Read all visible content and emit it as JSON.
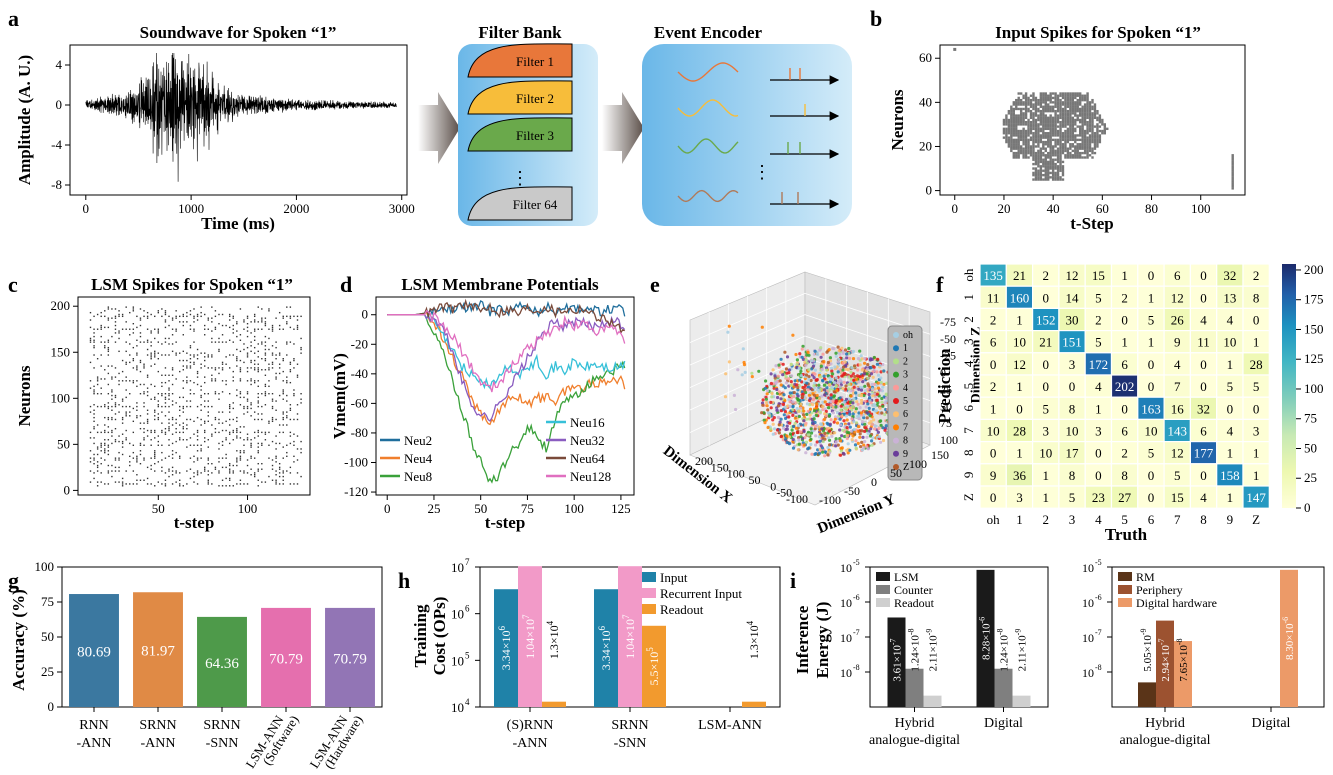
{
  "panels": {
    "a": {
      "letter": "a",
      "soundwave": {
        "title": "Soundwave for Spoken “1”",
        "xlabel": "Time (ms)",
        "ylabel": "Amplitude (A. U.)",
        "xticks": [
          0,
          1000,
          2000,
          3000
        ],
        "yticks": [
          4,
          0,
          -4,
          -8
        ],
        "xlim": [
          -150,
          3050
        ],
        "ylim": [
          -9,
          6
        ]
      },
      "filter_bank": {
        "title": "Filter Bank",
        "filters": [
          "Filter 1",
          "Filter 2",
          "Filter 3",
          "Filter 64"
        ],
        "colors": [
          "#e8773a",
          "#f7bd3a",
          "#6aa94b",
          "#c9c9c9"
        ],
        "ellipsis": "⋮"
      },
      "event_encoder": {
        "title": "Event Encoder",
        "ellipsis": "⋮",
        "wave_colors": [
          "#e8773a",
          "#f7bd3a",
          "#6aa94b",
          "#b07a5a"
        ]
      }
    },
    "b": {
      "letter": "b",
      "title": "Input Spikes for Spoken “1”",
      "xlabel": "t-Step",
      "ylabel": "Neurons",
      "xticks": [
        0,
        20,
        40,
        60,
        80,
        100
      ],
      "yticks": [
        0,
        20,
        40,
        60
      ],
      "xlim": [
        -6,
        118
      ],
      "ylim": [
        -2,
        66
      ]
    },
    "c": {
      "letter": "c",
      "title": "LSM Spikes for Spoken “1”",
      "xlabel": "t-step",
      "ylabel": "Neurons",
      "xticks": [
        50,
        100
      ],
      "yticks": [
        0,
        50,
        100,
        150,
        200
      ],
      "xlim": [
        5,
        135
      ],
      "ylim": [
        -5,
        210
      ]
    },
    "d": {
      "letter": "d",
      "title": "LSM Membrane Potentials",
      "xlabel": "t-step",
      "ylabel": "Vmem(mV)",
      "xticks": [
        0,
        25,
        50,
        75,
        100,
        125
      ],
      "yticks": [
        0,
        -20,
        -40,
        -60,
        -80,
        -100,
        -120
      ],
      "xlim": [
        -6,
        132
      ],
      "ylim": [
        -122,
        12
      ],
      "series": [
        {
          "name": "Neu2",
          "color": "#1f6e9c"
        },
        {
          "name": "Neu4",
          "color": "#f07f2d"
        },
        {
          "name": "Neu8",
          "color": "#3aa13a"
        },
        {
          "name": "Neu16",
          "color": "#36c0d8"
        },
        {
          "name": "Neu32",
          "color": "#8a5cc0"
        },
        {
          "name": "Neu64",
          "color": "#7a4a3a"
        },
        {
          "name": "Neu128",
          "color": "#e06fc0"
        }
      ]
    },
    "e": {
      "letter": "e",
      "xlabel": "Dimension X",
      "ylabel": "Dimension Y",
      "zlabel": "Dimension Z",
      "xticks": [
        -100,
        -50,
        0,
        50,
        100,
        150,
        200
      ],
      "yticks": [
        -100,
        -50,
        0,
        50,
        100,
        150
      ],
      "zticks": [
        -75,
        -50,
        -25,
        0,
        25,
        50,
        75,
        100
      ],
      "legend": [
        {
          "label": "oh",
          "color": "#a6cee3"
        },
        {
          "label": "1",
          "color": "#1f78b4"
        },
        {
          "label": "2",
          "color": "#b2df8a"
        },
        {
          "label": "3",
          "color": "#33a02c"
        },
        {
          "label": "4",
          "color": "#fb9a99"
        },
        {
          "label": "5",
          "color": "#e31a1c"
        },
        {
          "label": "6",
          "color": "#fdbf6f"
        },
        {
          "label": "7",
          "color": "#ff7f00"
        },
        {
          "label": "8",
          "color": "#cab2d6"
        },
        {
          "label": "9",
          "color": "#6a3d9a"
        },
        {
          "label": "Z",
          "color": "#b15928"
        }
      ]
    },
    "f": {
      "letter": "f",
      "xlabel": "Truth",
      "ylabel": "Prediction",
      "labels": [
        "oh",
        "1",
        "2",
        "3",
        "4",
        "5",
        "6",
        "7",
        "8",
        "9",
        "Z"
      ],
      "colorbar_ticks": [
        0,
        25,
        50,
        75,
        100,
        125,
        150,
        175,
        200
      ],
      "matrix": [
        [
          135,
          21,
          2,
          12,
          15,
          1,
          0,
          6,
          0,
          32,
          2
        ],
        [
          11,
          160,
          0,
          14,
          5,
          2,
          1,
          12,
          0,
          13,
          8
        ],
        [
          2,
          1,
          152,
          30,
          2,
          0,
          5,
          26,
          4,
          4,
          0
        ],
        [
          6,
          10,
          21,
          151,
          5,
          1,
          1,
          9,
          11,
          10,
          1
        ],
        [
          0,
          12,
          0,
          3,
          172,
          6,
          0,
          4,
          0,
          1,
          28
        ],
        [
          2,
          1,
          0,
          0,
          4,
          202,
          0,
          7,
          0,
          5,
          5
        ],
        [
          1,
          0,
          5,
          8,
          1,
          0,
          163,
          16,
          32,
          0,
          0
        ],
        [
          10,
          28,
          3,
          10,
          3,
          6,
          10,
          143,
          6,
          4,
          3
        ],
        [
          0,
          1,
          10,
          17,
          0,
          2,
          5,
          12,
          177,
          1,
          1
        ],
        [
          9,
          36,
          1,
          8,
          0,
          8,
          0,
          5,
          0,
          158,
          1
        ],
        [
          0,
          3,
          1,
          5,
          23,
          27,
          0,
          15,
          4,
          1,
          147
        ]
      ]
    },
    "g": {
      "letter": "g",
      "ylabel": "Accuracy (%)",
      "yticks": [
        0,
        25,
        50,
        75,
        100
      ],
      "ylim": [
        0,
        100
      ],
      "categories": [
        [
          "RNN",
          "-ANN"
        ],
        [
          "SRNN",
          "-ANN"
        ],
        [
          "SRNN",
          "-SNN"
        ],
        [
          "LSM-ANN",
          "(Software)"
        ],
        [
          "LSM-ANN",
          "(Hardware)"
        ]
      ],
      "values": [
        80.69,
        81.97,
        64.36,
        70.79,
        70.79
      ],
      "value_labels": [
        "80.69",
        "81.97",
        "64.36",
        "70.79",
        "70.79"
      ],
      "colors": [
        "#3b78a0",
        "#e08a45",
        "#4e9a4a",
        "#e56fae",
        "#9275b5"
      ]
    },
    "h": {
      "letter": "h",
      "ylabel": [
        "Training",
        "Cost (OPs)"
      ],
      "log_range": [
        4,
        7
      ],
      "tick_labels": [
        "10",
        "10",
        "10",
        "10"
      ],
      "tick_exps": [
        "4",
        "5",
        "6",
        "7"
      ],
      "legend": [
        "Input",
        "Recurrent Input",
        "Readout"
      ],
      "colors": [
        "#1f82a8",
        "#f29ac8",
        "#f29a2e"
      ],
      "categories": [
        [
          "(S)RNN",
          "-ANN"
        ],
        [
          "SRNN",
          "-SNN"
        ],
        [
          "LSM-ANN",
          ""
        ]
      ],
      "values": [
        [
          3340000,
          10400000,
          13000
        ],
        [
          3340000,
          10400000,
          550000
        ],
        [
          0,
          0,
          13000
        ]
      ],
      "value_labels": [
        [
          {
            "m": "3.34×10",
            "e": "6"
          },
          {
            "m": "1.04×10",
            "e": "7"
          },
          {
            "m": "1.3×10",
            "e": "4"
          }
        ],
        [
          {
            "m": "3.34×10",
            "e": "6"
          },
          {
            "m": "1.04×10",
            "e": "7"
          },
          {
            "m": "5.5×10",
            "e": "5"
          }
        ],
        [
          null,
          null,
          {
            "m": "1.3×10",
            "e": "4"
          }
        ]
      ]
    },
    "i": {
      "letter": "i",
      "ylabel": [
        "Inference",
        "Energy (J)"
      ],
      "log_range": [
        -9,
        -5
      ],
      "tick_labels": [
        "10",
        "10",
        "10",
        "10"
      ],
      "tick_exps": [
        "-8",
        "-7",
        "-6",
        "-5"
      ],
      "left": {
        "legend": [
          "LSM",
          "Counter",
          "Readout"
        ],
        "colors": [
          "#1a1a1a",
          "#7f7f7f",
          "#cfcfcf"
        ],
        "categories": [
          [
            "Hybrid",
            "analogue-digital"
          ],
          [
            "Digital",
            ""
          ]
        ],
        "values": [
          [
            3.61e-07,
            1.24e-08,
            2.11e-09
          ],
          [
            8.28e-06,
            1.24e-08,
            2.11e-09
          ]
        ],
        "value_labels": [
          [
            {
              "m": "3.61×10",
              "e": "-7"
            },
            {
              "m": "1.24×10",
              "e": "-8"
            },
            {
              "m": "2.11×10",
              "e": "-9"
            }
          ],
          [
            {
              "m": "8.28×10",
              "e": "-6"
            },
            {
              "m": "1.24×10",
              "e": "-8"
            },
            {
              "m": "2.11×10",
              "e": "-9"
            }
          ]
        ]
      },
      "right": {
        "legend": [
          "RM",
          "Periphery",
          "Digital hardware"
        ],
        "colors": [
          "#5a3418",
          "#9c5230",
          "#ec9a68"
        ],
        "categories": [
          [
            "Hybrid",
            "analogue-digital"
          ],
          [
            "Digital",
            ""
          ]
        ],
        "values": [
          [
            5.05e-09,
            2.94e-07,
            7.65e-08
          ],
          [
            0,
            0,
            8.3e-06
          ]
        ],
        "value_labels": [
          [
            {
              "m": "5.05×10",
              "e": "-9"
            },
            {
              "m": "2.94×10",
              "e": "-7"
            },
            {
              "m": "7.65×10",
              "e": "-8"
            }
          ],
          [
            null,
            null,
            {
              "m": "8.30×10",
              "e": "-6"
            }
          ]
        ]
      }
    }
  },
  "chart_data": [
    {
      "type": "line",
      "title": "Soundwave for Spoken “1”",
      "xlabel": "Time (ms)",
      "ylabel": "Amplitude (A. U.)",
      "xlim": [
        -150,
        3050
      ],
      "ylim": [
        -9,
        6
      ],
      "series": [
        {
          "values": "audio waveform, 0–2950 ms, peak ±5, min ≈ -8.5 near 800 ms"
        }
      ]
    },
    {
      "type": "scatter",
      "title": "Input Spikes for Spoken “1”",
      "xlabel": "t-Step",
      "ylabel": "Neurons",
      "xlim": [
        -6,
        118
      ],
      "ylim": [
        -2,
        66
      ]
    },
    {
      "type": "scatter",
      "title": "LSM Spikes for Spoken “1”",
      "xlabel": "t-step",
      "ylabel": "Neurons",
      "xlim": [
        5,
        135
      ],
      "ylim": [
        -5,
        210
      ]
    },
    {
      "type": "line",
      "title": "LSM Membrane Potentials",
      "xlabel": "t-step",
      "ylabel": "Vmem(mV)",
      "xlim": [
        -6,
        132
      ],
      "ylim": [
        -122,
        12
      ],
      "x": [
        0,
        5,
        10,
        15,
        20,
        25,
        30,
        35,
        40,
        45,
        50,
        55,
        60,
        65,
        70,
        75,
        80,
        85,
        90,
        95,
        100,
        105,
        110,
        115,
        120,
        125,
        128
      ],
      "series": [
        {
          "name": "Neu2",
          "values": [
            0,
            0,
            0,
            0,
            1,
            2,
            5,
            3,
            6,
            4,
            7,
            2,
            5,
            3,
            6,
            4,
            2,
            5,
            3,
            6,
            4,
            5,
            3,
            2,
            4,
            3,
            2
          ]
        },
        {
          "name": "Neu4",
          "values": [
            0,
            0,
            0,
            0,
            0,
            -5,
            -15,
            -28,
            -42,
            -55,
            -68,
            -72,
            -65,
            -58,
            -55,
            -60,
            -57,
            -55,
            -58,
            -52,
            -48,
            -50,
            -45,
            -47,
            -42,
            -45,
            -48
          ]
        },
        {
          "name": "Neu8",
          "values": [
            0,
            0,
            0,
            0,
            0,
            -10,
            -25,
            -45,
            -65,
            -85,
            -100,
            -114,
            -108,
            -95,
            -88,
            -75,
            -82,
            -90,
            -70,
            -60,
            -55,
            -50,
            -45,
            -40,
            -38,
            -35,
            -36
          ]
        },
        {
          "name": "Neu16",
          "values": [
            0,
            0,
            0,
            0,
            0,
            -5,
            -15,
            -25,
            -35,
            -40,
            -45,
            -48,
            -42,
            -35,
            -40,
            -38,
            -30,
            -40,
            -35,
            -38,
            -32,
            -36,
            -34,
            -35,
            -37,
            -35,
            -34
          ]
        },
        {
          "name": "Neu32",
          "values": [
            0,
            0,
            0,
            0,
            0,
            -3,
            -10,
            -25,
            -45,
            -60,
            -68,
            -70,
            -60,
            -50,
            -40,
            -30,
            -20,
            -10,
            -5,
            -8,
            -5,
            -6,
            -8,
            -5,
            -4,
            -6,
            -8
          ]
        },
        {
          "name": "Neu64",
          "values": [
            0,
            0,
            0,
            0,
            1,
            3,
            6,
            4,
            8,
            5,
            3,
            6,
            2,
            4,
            1,
            5,
            3,
            6,
            2,
            4,
            3,
            5,
            0,
            -2,
            -5,
            -10,
            -12
          ]
        },
        {
          "name": "Neu128",
          "values": [
            0,
            0,
            0,
            0,
            0,
            -2,
            -8,
            -15,
            -25,
            -35,
            -45,
            -50,
            -45,
            -38,
            -30,
            -22,
            -18,
            -12,
            -10,
            -5,
            -8,
            -6,
            -10,
            -12,
            -8,
            -15,
            -18
          ]
        }
      ]
    },
    {
      "type": "scatter",
      "title": "",
      "xlabel": "Dimension X",
      "ylabel": "Dimension Y",
      "zlabel": "Dimension Z",
      "series": [
        {
          "name": "oh"
        },
        {
          "name": "1"
        },
        {
          "name": "2"
        },
        {
          "name": "3"
        },
        {
          "name": "4"
        },
        {
          "name": "5"
        },
        {
          "name": "6"
        },
        {
          "name": "7"
        },
        {
          "name": "8"
        },
        {
          "name": "9"
        },
        {
          "name": "Z"
        }
      ]
    },
    {
      "type": "heatmap",
      "title": "",
      "xlabel": "Truth",
      "ylabel": "Prediction",
      "categories": [
        "oh",
        "1",
        "2",
        "3",
        "4",
        "5",
        "6",
        "7",
        "8",
        "9",
        "Z"
      ]
    },
    {
      "type": "bar",
      "title": "",
      "ylabel": "Accuracy (%)",
      "categories": [
        "RNN -ANN",
        "SRNN -ANN",
        "SRNN -SNN",
        "LSM-ANN (Software)",
        "LSM-ANN (Hardware)"
      ],
      "values": [
        80.69,
        81.97,
        64.36,
        70.79,
        70.79
      ],
      "ylim": [
        0,
        100
      ]
    },
    {
      "type": "bar",
      "title": "",
      "ylabel": "Training Cost (OPs)",
      "scale": "log",
      "categories": [
        "(S)RNN -ANN",
        "SRNN -SNN",
        "LSM-ANN"
      ],
      "series": [
        {
          "name": "Input",
          "values": [
            3340000,
            3340000,
            0
          ]
        },
        {
          "name": "Recurrent Input",
          "values": [
            10400000,
            10400000,
            0
          ]
        },
        {
          "name": "Readout",
          "values": [
            13000,
            550000,
            13000
          ]
        }
      ]
    },
    {
      "type": "bar",
      "title": "",
      "ylabel": "Inference Energy (J)",
      "scale": "log",
      "categories": [
        "Hybrid analogue-digital",
        "Digital"
      ],
      "series": [
        {
          "name": "LSM",
          "values": [
            3.61e-07,
            8.28e-06
          ]
        },
        {
          "name": "Counter",
          "values": [
            1.24e-08,
            1.24e-08
          ]
        },
        {
          "name": "Readout",
          "values": [
            2.11e-09,
            2.11e-09
          ]
        }
      ]
    },
    {
      "type": "bar",
      "title": "",
      "ylabel": "Inference Energy (J)",
      "scale": "log",
      "categories": [
        "Hybrid analogue-digital",
        "Digital"
      ],
      "series": [
        {
          "name": "RM",
          "values": [
            5.05e-09,
            0
          ]
        },
        {
          "name": "Periphery",
          "values": [
            2.94e-07,
            0
          ]
        },
        {
          "name": "Digital hardware",
          "values": [
            7.65e-08,
            8.3e-06
          ]
        }
      ]
    }
  ]
}
